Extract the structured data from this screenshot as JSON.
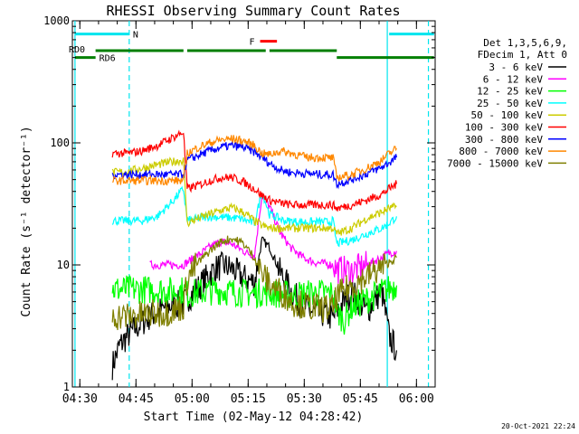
{
  "chart_data": {
    "type": "line",
    "title": "RHESSI Observing Summary Count Rates",
    "xlabel": "Start Time (02-May-12 04:28:42)",
    "ylabel": "Count Rate (s⁻¹ detector⁻¹)",
    "yscale": "log",
    "ylim": [
      1,
      1000
    ],
    "xlim_minutes": [
      -0.7,
      96.3
    ],
    "y_tick_labels": [
      "1",
      "10",
      "100",
      "1000"
    ],
    "x_tick_labels": [
      "04:30",
      "04:45",
      "05:00",
      "05:15",
      "05:30",
      "05:45",
      "06:00"
    ],
    "legend_header": [
      "Det 1,3,5,6,9,",
      "FDecim 1, Att 0"
    ],
    "timestamp": "20-Oct-2021 22:24",
    "flags": [
      {
        "label": "N",
        "color": "#00e5ee",
        "segments": [
          [
            0,
            14.5
          ],
          [
            84,
            96
          ]
        ],
        "level": 780
      },
      {
        "label": "F",
        "color": "#ff0000",
        "segments": [
          [
            49.5,
            54
          ]
        ],
        "level": 680
      },
      {
        "label": "RD0",
        "color": "#007f00",
        "segments": [
          [
            0,
            5.5
          ],
          [
            70,
            96
          ]
        ],
        "level": 500
      },
      {
        "label": "RD6",
        "color": "#007f00",
        "segments": [
          [
            5.5,
            29
          ],
          [
            30,
            51
          ],
          [
            52,
            70
          ]
        ],
        "level": 570
      }
    ],
    "boundaries": [
      {
        "t": 0,
        "color": "#00e5ee",
        "style": "solid"
      },
      {
        "t": 14.5,
        "color": "#00e5ee",
        "style": "dashed"
      },
      {
        "t": 83.5,
        "color": "#00e5ee",
        "style": "solid"
      },
      {
        "t": 94.5,
        "color": "#00e5ee",
        "style": "dashed"
      }
    ],
    "series": [
      {
        "name": "3 - 6 keV",
        "color": "#000000",
        "points": [
          [
            10,
            1.5
          ],
          [
            12,
            2.2
          ],
          [
            14,
            2.6
          ],
          [
            16,
            3.0
          ],
          [
            20,
            3.8
          ],
          [
            25,
            4.6
          ],
          [
            29,
            4.8
          ],
          [
            30,
            5.3
          ],
          [
            33,
            6.5
          ],
          [
            36,
            8.5
          ],
          [
            38,
            9.5
          ],
          [
            40,
            9.8
          ],
          [
            42,
            9.3
          ],
          [
            44,
            8.3
          ],
          [
            46,
            7.6
          ],
          [
            48,
            7.2
          ],
          [
            50,
            16
          ],
          [
            52,
            14
          ],
          [
            55,
            8.5
          ],
          [
            58,
            6.0
          ],
          [
            61,
            4.6
          ],
          [
            64,
            4.0
          ],
          [
            67,
            4.0
          ],
          [
            69,
            3.6
          ],
          [
            70,
            4.2
          ],
          [
            72,
            5.0
          ],
          [
            74,
            6.0
          ],
          [
            76,
            5.0
          ],
          [
            78,
            4.2
          ],
          [
            80,
            5.0
          ],
          [
            82,
            6.2
          ],
          [
            84,
            2.6
          ],
          [
            86,
            2.0
          ]
        ]
      },
      {
        "name": "6 - 12 keV",
        "color": "#ff00ff",
        "points": [
          [
            20,
            10
          ],
          [
            24,
            10
          ],
          [
            28,
            10
          ],
          [
            29,
            10
          ],
          [
            30,
            10.5
          ],
          [
            33,
            12
          ],
          [
            36,
            14
          ],
          [
            39,
            15.5
          ],
          [
            42,
            14.8
          ],
          [
            46,
            12.5
          ],
          [
            48,
            12
          ],
          [
            50,
            38
          ],
          [
            52,
            30
          ],
          [
            55,
            18
          ],
          [
            58,
            13.5
          ],
          [
            61,
            11.5
          ],
          [
            64,
            10.5
          ],
          [
            67,
            10.2
          ],
          [
            69,
            10
          ],
          [
            70,
            9.2
          ],
          [
            74,
            9.0
          ],
          [
            78,
            10
          ],
          [
            82,
            11.5
          ],
          [
            84,
            12.5
          ],
          [
            86,
            13
          ]
        ]
      },
      {
        "name": "12 - 25 keV",
        "color": "#00ff00",
        "points": [
          [
            10,
            6.3
          ],
          [
            14,
            6.3
          ],
          [
            18,
            6.3
          ],
          [
            22,
            6.2
          ],
          [
            26,
            6.1
          ],
          [
            29,
            6.2
          ],
          [
            30,
            5.8
          ],
          [
            34,
            6.0
          ],
          [
            38,
            6.2
          ],
          [
            42,
            6.0
          ],
          [
            46,
            5.9
          ],
          [
            48,
            5.8
          ],
          [
            50,
            6.0
          ],
          [
            54,
            5.8
          ],
          [
            58,
            5.7
          ],
          [
            62,
            5.8
          ],
          [
            66,
            5.9
          ],
          [
            69,
            5.8
          ],
          [
            70,
            4.2
          ],
          [
            72,
            3.5
          ],
          [
            74,
            4.5
          ],
          [
            78,
            5.2
          ],
          [
            82,
            6.0
          ],
          [
            86,
            6.8
          ]
        ]
      },
      {
        "name": "25 - 50 keV",
        "color": "#00ffff",
        "points": [
          [
            10,
            23
          ],
          [
            14,
            23
          ],
          [
            18,
            23
          ],
          [
            22,
            25
          ],
          [
            26,
            33
          ],
          [
            29,
            42
          ],
          [
            30,
            23
          ],
          [
            33,
            24
          ],
          [
            36,
            25
          ],
          [
            40,
            24.5
          ],
          [
            44,
            24
          ],
          [
            48,
            22
          ],
          [
            50,
            40
          ],
          [
            52,
            26
          ],
          [
            56,
            23
          ],
          [
            60,
            22.5
          ],
          [
            64,
            22.5
          ],
          [
            68,
            22.5
          ],
          [
            69,
            23
          ],
          [
            70,
            15
          ],
          [
            74,
            16
          ],
          [
            78,
            18
          ],
          [
            82,
            20
          ],
          [
            84,
            22
          ],
          [
            86,
            25
          ]
        ]
      },
      {
        "name": "50 - 100 keV",
        "color": "#cccc00",
        "points": [
          [
            10,
            57
          ],
          [
            14,
            58
          ],
          [
            18,
            62
          ],
          [
            22,
            66
          ],
          [
            26,
            70
          ],
          [
            29,
            72
          ],
          [
            30,
            22
          ],
          [
            33,
            24
          ],
          [
            36,
            26
          ],
          [
            39,
            28
          ],
          [
            42,
            29.5
          ],
          [
            45,
            27
          ],
          [
            48,
            23
          ],
          [
            50,
            21
          ],
          [
            52,
            20
          ],
          [
            56,
            20
          ],
          [
            60,
            20
          ],
          [
            64,
            20
          ],
          [
            68,
            20
          ],
          [
            69,
            20
          ],
          [
            70,
            18
          ],
          [
            74,
            20
          ],
          [
            78,
            24
          ],
          [
            82,
            27
          ],
          [
            84,
            29
          ],
          [
            86,
            30
          ]
        ]
      },
      {
        "name": "100 - 300 keV",
        "color": "#ff0000",
        "points": [
          [
            10,
            82
          ],
          [
            14,
            82
          ],
          [
            18,
            86
          ],
          [
            22,
            95
          ],
          [
            26,
            110
          ],
          [
            29,
            123
          ],
          [
            30,
            42
          ],
          [
            33,
            45
          ],
          [
            36,
            49
          ],
          [
            39,
            52
          ],
          [
            42,
            52
          ],
          [
            45,
            48
          ],
          [
            48,
            42
          ],
          [
            50,
            37
          ],
          [
            52,
            34
          ],
          [
            55,
            32
          ],
          [
            58,
            31
          ],
          [
            62,
            31
          ],
          [
            66,
            31
          ],
          [
            69,
            31
          ],
          [
            70,
            29
          ],
          [
            74,
            31
          ],
          [
            78,
            34
          ],
          [
            82,
            38
          ],
          [
            84,
            42
          ],
          [
            86,
            46
          ]
        ]
      },
      {
        "name": "300 - 800 keV",
        "color": "#0000ff",
        "points": [
          [
            10,
            55
          ],
          [
            16,
            55
          ],
          [
            22,
            55
          ],
          [
            29,
            55
          ],
          [
            30,
            72
          ],
          [
            33,
            79
          ],
          [
            36,
            86
          ],
          [
            39,
            92
          ],
          [
            42,
            95
          ],
          [
            45,
            92
          ],
          [
            48,
            84
          ],
          [
            50,
            76
          ],
          [
            52,
            68
          ],
          [
            55,
            60
          ],
          [
            58,
            57
          ],
          [
            62,
            56
          ],
          [
            66,
            55
          ],
          [
            69,
            55
          ],
          [
            70,
            46
          ],
          [
            74,
            50
          ],
          [
            78,
            56
          ],
          [
            82,
            63
          ],
          [
            84,
            69
          ],
          [
            86,
            76
          ]
        ]
      },
      {
        "name": "800 - 7000 keV",
        "color": "#ff8800",
        "points": [
          [
            10,
            49
          ],
          [
            16,
            49
          ],
          [
            22,
            49
          ],
          [
            29,
            49
          ],
          [
            30,
            82
          ],
          [
            33,
            92
          ],
          [
            36,
            100
          ],
          [
            39,
            106
          ],
          [
            42,
            108
          ],
          [
            45,
            104
          ],
          [
            48,
            95
          ],
          [
            50,
            82
          ],
          [
            52,
            80
          ],
          [
            55,
            86
          ],
          [
            58,
            82
          ],
          [
            62,
            76
          ],
          [
            66,
            76
          ],
          [
            69,
            75
          ],
          [
            70,
            52
          ],
          [
            74,
            55
          ],
          [
            78,
            62
          ],
          [
            82,
            72
          ],
          [
            84,
            82
          ],
          [
            86,
            90
          ]
        ]
      },
      {
        "name": "7000 - 15000 keV",
        "color": "#7f7f00",
        "points": [
          [
            10,
            3.8
          ],
          [
            14,
            3.8
          ],
          [
            18,
            3.9
          ],
          [
            22,
            4.0
          ],
          [
            26,
            4.2
          ],
          [
            29,
            4.6
          ],
          [
            30,
            7.8
          ],
          [
            33,
            10.5
          ],
          [
            36,
            13
          ],
          [
            39,
            15.5
          ],
          [
            42,
            16.5
          ],
          [
            45,
            15
          ],
          [
            48,
            11.5
          ],
          [
            50,
            8.5
          ],
          [
            52,
            7.0
          ],
          [
            55,
            6.0
          ],
          [
            58,
            5.0
          ],
          [
            62,
            4.6
          ],
          [
            66,
            4.4
          ],
          [
            69,
            4.4
          ],
          [
            70,
            5.5
          ],
          [
            74,
            6.8
          ],
          [
            78,
            8.0
          ],
          [
            82,
            9.5
          ],
          [
            84,
            10.5
          ],
          [
            86,
            11.5
          ]
        ]
      }
    ]
  }
}
